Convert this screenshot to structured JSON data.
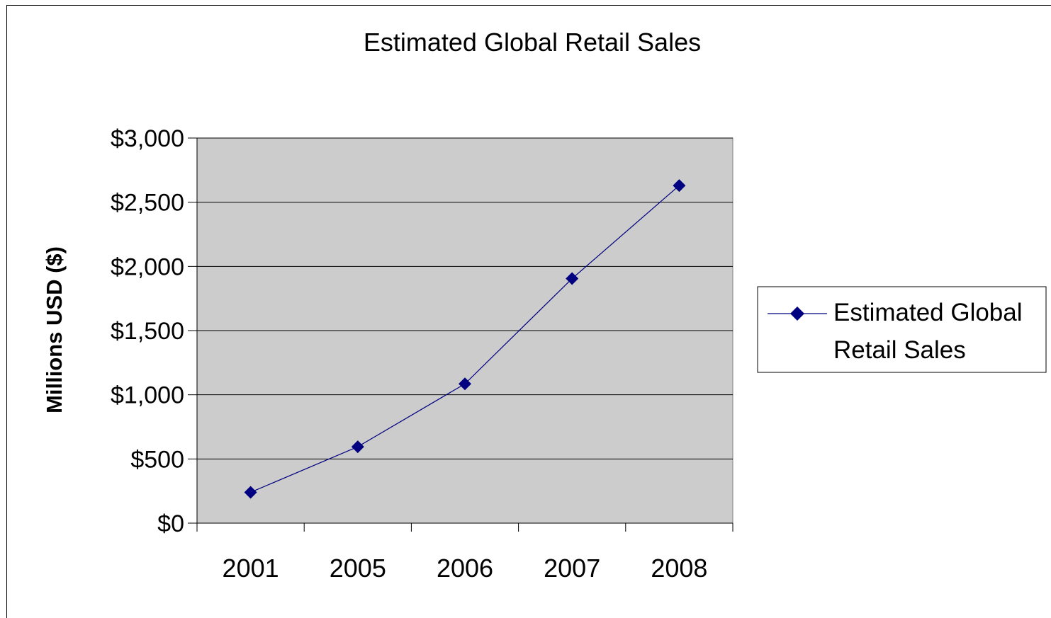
{
  "chart_data": {
    "type": "line",
    "title": "Estimated Global Retail Sales",
    "xlabel": "",
    "ylabel": "Millions USD ($)",
    "categories": [
      "2001",
      "2005",
      "2006",
      "2007",
      "2008"
    ],
    "series": [
      {
        "name": "Estimated Global Retail Sales",
        "values": [
          240,
          595,
          1085,
          1905,
          2630
        ]
      }
    ],
    "ylim": [
      0,
      3000
    ],
    "yticks": [
      0,
      500,
      1000,
      1500,
      2000,
      2500,
      3000
    ],
    "ytick_labels": [
      "$0",
      "$500",
      "$1,000",
      "$1,500",
      "$2,000",
      "$2,500",
      "$3,000"
    ],
    "grid": true,
    "legend_position": "right",
    "legend_lines": [
      "Estimated Global",
      "Retail Sales"
    ],
    "colors": {
      "series": "#000080",
      "plot_bg": "#cccccc",
      "grid": "#000000"
    }
  }
}
